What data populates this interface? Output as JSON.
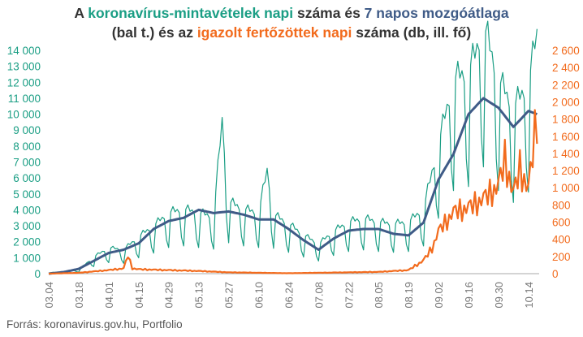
{
  "title": {
    "line1_prefix": "A ",
    "line1_tests": "koronavírus-mintavételek napi",
    "line1_mid": " száma és ",
    "line1_avg": "7 napos mozgóátlaga",
    "line2_prefix": "(bal t.) és az ",
    "line2_infected": "igazolt fertőzöttek napi",
    "line2_suffix": " száma (db, ill. fő)"
  },
  "source": "Forrás: koronavirus.gov.hu, Portfolio",
  "colors": {
    "tests": "#1a9e84",
    "moving_average": "#3f5b87",
    "infected": "#f26b1d",
    "axis": "#aaaaaa",
    "text": "#333333"
  },
  "chart_data": {
    "type": "line",
    "grid": false,
    "legend": "none",
    "left_axis": {
      "ylim": [
        0,
        14000
      ],
      "ticks": [
        0,
        1000,
        2000,
        3000,
        4000,
        5000,
        6000,
        7000,
        8000,
        9000,
        10000,
        11000,
        12000,
        13000,
        14000
      ],
      "tick_labels": [
        "0",
        "1 000",
        "2 000",
        "3 000",
        "4 000",
        "5 000",
        "6 000",
        "7 000",
        "8 000",
        "9 000",
        "10 000",
        "11 000",
        "12 000",
        "13 000",
        "14 000"
      ]
    },
    "right_axis": {
      "ylim": [
        0,
        2600
      ],
      "ticks": [
        0,
        200,
        400,
        600,
        800,
        1000,
        1200,
        1400,
        1600,
        1800,
        2000,
        2200,
        2400,
        2600
      ],
      "tick_labels": [
        "0",
        "200",
        "400",
        "600",
        "800",
        "1 000",
        "1 200",
        "1 400",
        "1 600",
        "1 800",
        "2 000",
        "2 200",
        "2 400",
        "2 600"
      ]
    },
    "x_tick_labels": [
      "03.04",
      "03.18",
      "04.01",
      "04.15",
      "04.29",
      "05.13",
      "05.27",
      "06.10",
      "06.24",
      "07.08",
      "07.22",
      "08.05",
      "08.19",
      "09.02",
      "09.16",
      "09.30",
      "10.14"
    ],
    "tests_anchors": [
      [
        "03.04",
        50
      ],
      [
        "03.10",
        100
      ],
      [
        "03.18",
        200
      ],
      [
        "03.25",
        900
      ],
      [
        "04.01",
        1400
      ],
      [
        "04.08",
        1300
      ],
      [
        "04.15",
        2000
      ],
      [
        "04.22",
        2600
      ],
      [
        "04.29",
        3300
      ],
      [
        "05.06",
        3500
      ],
      [
        "05.13",
        3300
      ],
      [
        "05.20",
        3100
      ],
      [
        "05.24",
        8300
      ],
      [
        "05.27",
        3900
      ],
      [
        "06.03",
        3500
      ],
      [
        "06.10",
        3300
      ],
      [
        "06.14",
        5600
      ],
      [
        "06.17",
        3200
      ],
      [
        "06.24",
        2700
      ],
      [
        "07.01",
        2100
      ],
      [
        "07.08",
        1600
      ],
      [
        "07.15",
        2300
      ],
      [
        "07.22",
        2800
      ],
      [
        "07.29",
        3000
      ],
      [
        "08.05",
        2800
      ],
      [
        "08.12",
        2700
      ],
      [
        "08.19",
        2800
      ],
      [
        "08.26",
        3500
      ],
      [
        "09.02",
        7000
      ],
      [
        "09.09",
        10500
      ],
      [
        "09.16",
        11000
      ],
      [
        "09.19",
        11800
      ],
      [
        "09.23",
        13500
      ],
      [
        "09.30",
        10500
      ],
      [
        "10.07",
        9000
      ],
      [
        "10.14",
        10300
      ],
      [
        "10.18",
        13000
      ]
    ],
    "moving_average_anchors": [
      [
        "03.04",
        0
      ],
      [
        "03.11",
        100
      ],
      [
        "03.18",
        300
      ],
      [
        "03.25",
        800
      ],
      [
        "04.01",
        1300
      ],
      [
        "04.08",
        1500
      ],
      [
        "04.15",
        1900
      ],
      [
        "04.22",
        2800
      ],
      [
        "04.29",
        3300
      ],
      [
        "05.06",
        3500
      ],
      [
        "05.13",
        4000
      ],
      [
        "05.20",
        3800
      ],
      [
        "05.27",
        3900
      ],
      [
        "06.03",
        3700
      ],
      [
        "06.10",
        3400
      ],
      [
        "06.17",
        3400
      ],
      [
        "06.24",
        2800
      ],
      [
        "07.01",
        2100
      ],
      [
        "07.08",
        1500
      ],
      [
        "07.15",
        2200
      ],
      [
        "07.22",
        2700
      ],
      [
        "07.29",
        2800
      ],
      [
        "08.05",
        2800
      ],
      [
        "08.12",
        2500
      ],
      [
        "08.19",
        2400
      ],
      [
        "08.26",
        3200
      ],
      [
        "09.02",
        5900
      ],
      [
        "09.09",
        7500
      ],
      [
        "09.16",
        10000
      ],
      [
        "09.23",
        11000
      ],
      [
        "09.30",
        10400
      ],
      [
        "10.07",
        9200
      ],
      [
        "10.14",
        10200
      ],
      [
        "10.18",
        10000
      ]
    ],
    "infected_anchors": [
      [
        "03.04",
        0
      ],
      [
        "03.18",
        10
      ],
      [
        "03.25",
        25
      ],
      [
        "04.01",
        40
      ],
      [
        "04.08",
        60
      ],
      [
        "04.10",
        210
      ],
      [
        "04.12",
        60
      ],
      [
        "04.15",
        50
      ],
      [
        "04.29",
        40
      ],
      [
        "05.13",
        30
      ],
      [
        "05.27",
        15
      ],
      [
        "06.10",
        10
      ],
      [
        "06.24",
        5
      ],
      [
        "07.08",
        10
      ],
      [
        "07.22",
        15
      ],
      [
        "08.05",
        20
      ],
      [
        "08.19",
        40
      ],
      [
        "08.26",
        150
      ],
      [
        "08.30",
        290
      ],
      [
        "09.02",
        480
      ],
      [
        "09.09",
        700
      ],
      [
        "09.16",
        750
      ],
      [
        "09.23",
        850
      ],
      [
        "09.30",
        1000
      ],
      [
        "10.03",
        1300
      ],
      [
        "10.07",
        900
      ],
      [
        "10.10",
        1200
      ],
      [
        "10.14",
        950
      ],
      [
        "10.18",
        1800
      ]
    ]
  }
}
